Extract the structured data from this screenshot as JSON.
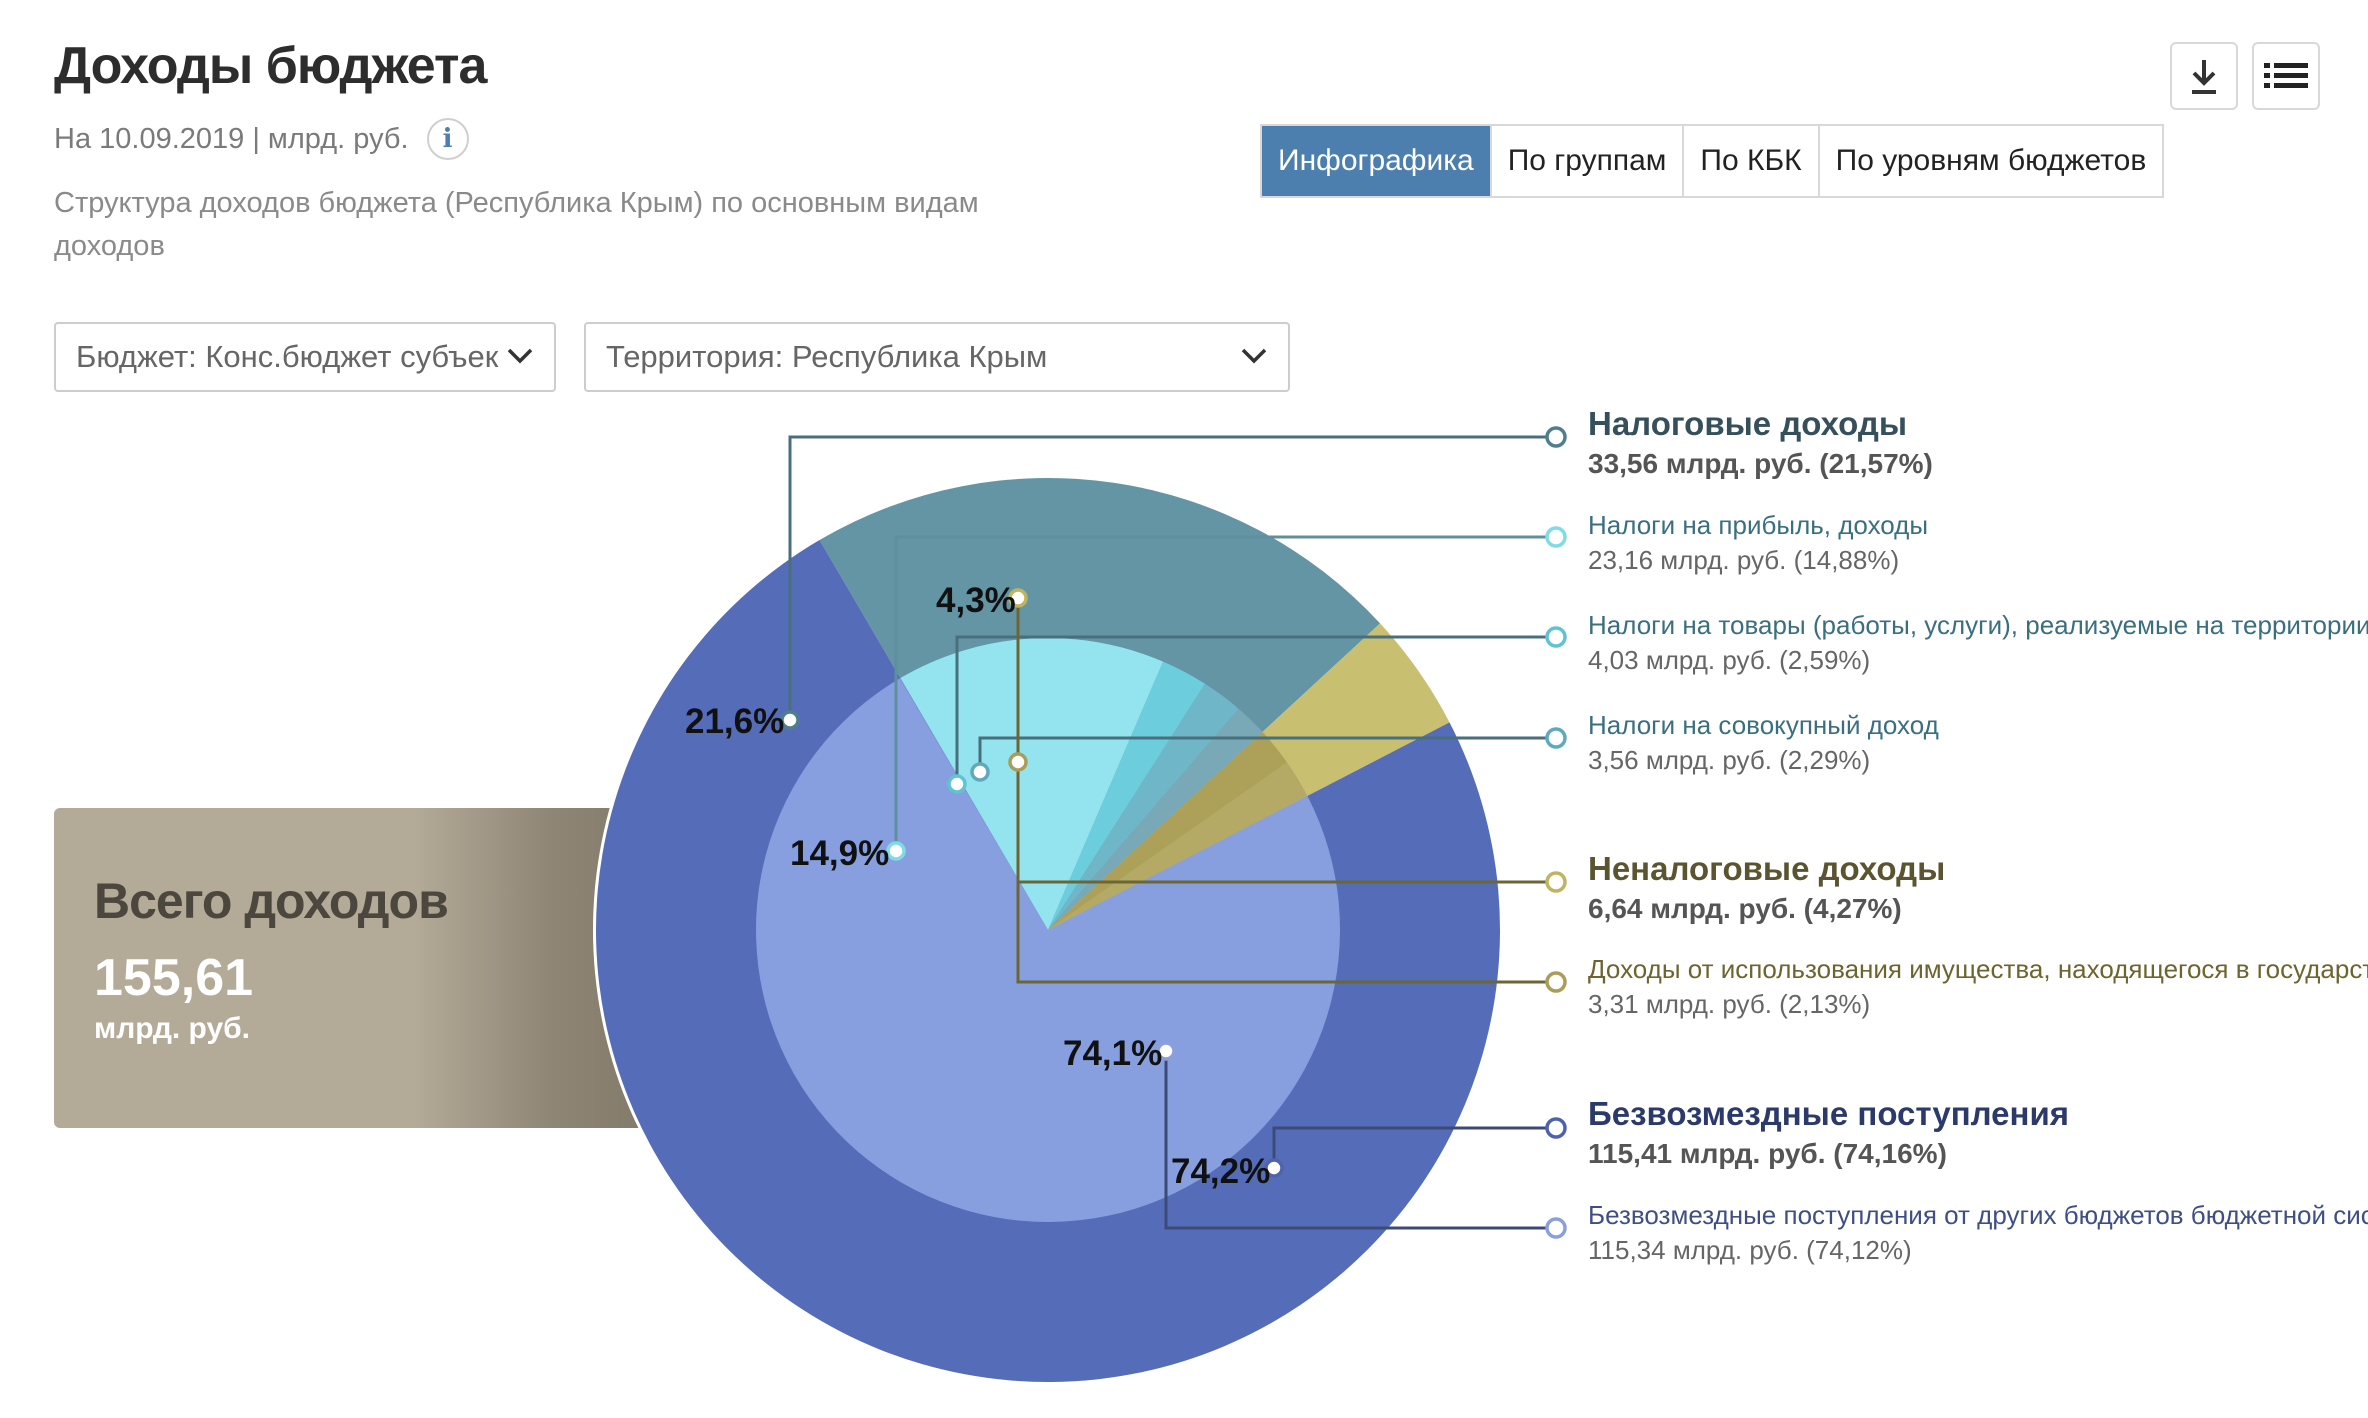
{
  "header": {
    "title": "Доходы бюджета",
    "meta": "На 10.09.2019 | млрд. руб.",
    "description": "Структура доходов бюджета (Республика Крым) по основным видам доходов"
  },
  "tabs": [
    "Инфографика",
    "По группам",
    "По КБК",
    "По уровням бюджетов"
  ],
  "toolbar": {
    "download_icon": "download-icon",
    "menu_icon": "list-icon"
  },
  "filters": {
    "budget": "Бюджет: Конс.бюджет субъек",
    "territory": "Территория: Республика Крым"
  },
  "total": {
    "label": "Всего доходов",
    "value": "155,61",
    "unit": "млрд. руб."
  },
  "colors": {
    "tax_outer": "#6495a5",
    "tax_inner_profit": "#93e4ee",
    "tax_inner_goods": "#6ccedd",
    "tax_inner_aggregate": "#6fb6c8",
    "nontax_outer": "#c8c070",
    "nontax_inner": "#ada15a",
    "grants_outer": "#556cb8",
    "grants_inner": "#879fdf",
    "active_tab": "#4d7fae"
  },
  "chart_data": {
    "type": "pie",
    "subtype": "nested-donut",
    "outer": [
      {
        "name": "Налоговые доходы",
        "percent": 21.57,
        "label": "21,6%",
        "amount": "33,56 млрд. руб. (21,57%)"
      },
      {
        "name": "Неналоговые доходы",
        "percent": 4.27,
        "label": "4,3%",
        "amount": "6,64 млрд. руб. (4,27%)"
      },
      {
        "name": "Безвозмездные поступления",
        "percent": 74.16,
        "label": "74,2%",
        "amount": "115,41 млрд. руб. (74,16%)"
      }
    ],
    "inner": [
      {
        "name": "Налоги на прибыль, доходы",
        "group": "Налоговые доходы",
        "percent": 14.88,
        "label": "14,9%",
        "amount": "23,16 млрд. руб. (14,88%)"
      },
      {
        "name": "Налоги на товары (работы, услуги), реализуемые на территории Ро…",
        "group": "Налоговые доходы",
        "percent": 2.59,
        "label": "",
        "amount": "4,03 млрд. руб. (2,59%)"
      },
      {
        "name": "Налоги на совокупный доход",
        "group": "Налоговые доходы",
        "percent": 2.29,
        "label": "",
        "amount": "3,56 млрд. руб. (2,29%)"
      },
      {
        "name": "Доходы от использования имущества, находящегося в государстве…",
        "group": "Неналоговые доходы",
        "percent": 2.13,
        "label": "",
        "amount": "3,31 млрд. руб. (2,13%)"
      },
      {
        "name": "Безвозмездные поступления от других бюджетов бюджетной систе…",
        "group": "Безвозмездные поступления",
        "percent": 74.12,
        "label": "74,1%",
        "amount": "115,34 млрд. руб. (74,12%)"
      }
    ]
  }
}
